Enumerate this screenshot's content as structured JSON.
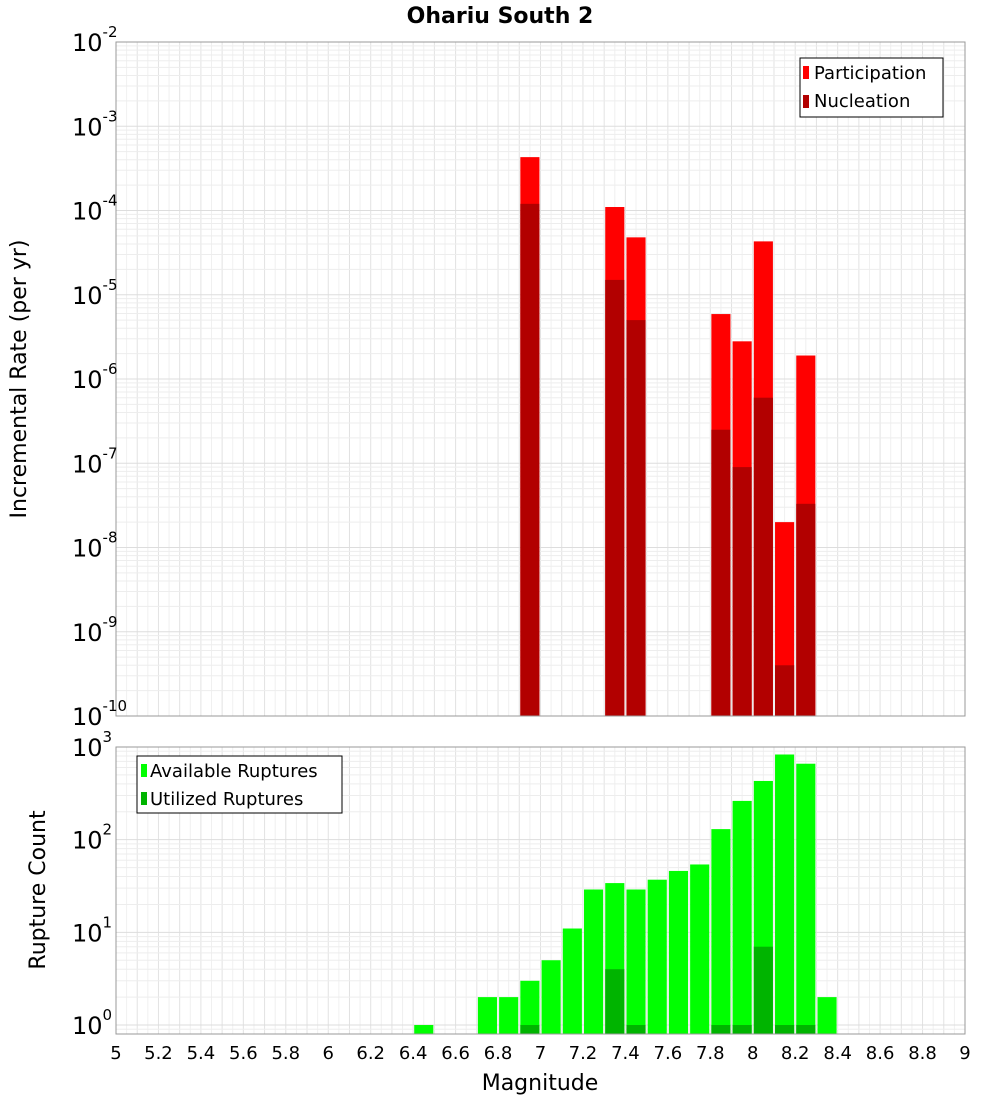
{
  "chart_data": [
    {
      "type": "bar",
      "title": "Ohariu South 2",
      "xlabel": "",
      "ylabel": "Incremental Rate (per yr)",
      "xlim": [
        5,
        9
      ],
      "ylim": [
        1e-10,
        0.01
      ],
      "yscale": "log",
      "grid": true,
      "legend_position": "top-right",
      "x": [
        6.95,
        7.35,
        7.45,
        7.85,
        7.95,
        8.05,
        8.15,
        8.25
      ],
      "series": [
        {
          "name": "Participation",
          "color": "#ff0000",
          "values": [
            0.00043,
            0.00011,
            4.8e-05,
            5.9e-06,
            2.8e-06,
            4.3e-05,
            2e-08,
            1.9e-06
          ]
        },
        {
          "name": "Nucleation",
          "color": "#b20000",
          "values": [
            0.00012,
            1.5e-05,
            5e-06,
            2.5e-07,
            9e-08,
            6e-07,
            4e-10,
            3.3e-08
          ]
        }
      ]
    },
    {
      "type": "bar",
      "title": "",
      "xlabel": "Magnitude",
      "ylabel": "Rupture Count",
      "xlim": [
        5,
        9
      ],
      "ylim": [
        0.8,
        1000
      ],
      "yscale": "log",
      "grid": true,
      "legend_position": "top-left",
      "x": [
        6.45,
        6.75,
        6.85,
        6.95,
        7.05,
        7.15,
        7.25,
        7.35,
        7.45,
        7.55,
        7.65,
        7.75,
        7.85,
        7.95,
        8.05,
        8.15,
        8.25,
        8.35
      ],
      "series": [
        {
          "name": "Available Ruptures",
          "color": "#00ff00",
          "values": [
            1,
            2,
            2,
            3,
            5,
            11,
            29,
            34,
            29,
            37,
            46,
            54,
            130,
            262,
            430,
            830,
            660,
            2
          ]
        },
        {
          "name": "Utilized Ruptures",
          "color": "#00b400",
          "values": [
            0,
            0,
            0,
            1,
            0,
            0,
            0,
            4,
            1,
            0,
            0,
            0,
            1,
            1,
            7,
            1,
            1,
            0
          ]
        }
      ]
    }
  ],
  "x_ticks": [
    "5",
    "5.2",
    "5.4",
    "5.6",
    "5.8",
    "6",
    "6.2",
    "6.4",
    "6.6",
    "6.8",
    "7",
    "7.2",
    "7.4",
    "7.6",
    "7.8",
    "8",
    "8.2",
    "8.4",
    "8.6",
    "8.8",
    "9"
  ],
  "top_y_ticks": [
    {
      "base": "10",
      "exp": "-2"
    },
    {
      "base": "10",
      "exp": "-3"
    },
    {
      "base": "10",
      "exp": "-4"
    },
    {
      "base": "10",
      "exp": "-5"
    },
    {
      "base": "10",
      "exp": "-6"
    },
    {
      "base": "10",
      "exp": "-7"
    },
    {
      "base": "10",
      "exp": "-8"
    },
    {
      "base": "10",
      "exp": "-9"
    },
    {
      "base": "10",
      "exp": "-10"
    }
  ],
  "bottom_y_ticks": [
    {
      "base": "10",
      "exp": "3"
    },
    {
      "base": "10",
      "exp": "2"
    },
    {
      "base": "10",
      "exp": "1"
    },
    {
      "base": "10",
      "exp": "0"
    }
  ]
}
